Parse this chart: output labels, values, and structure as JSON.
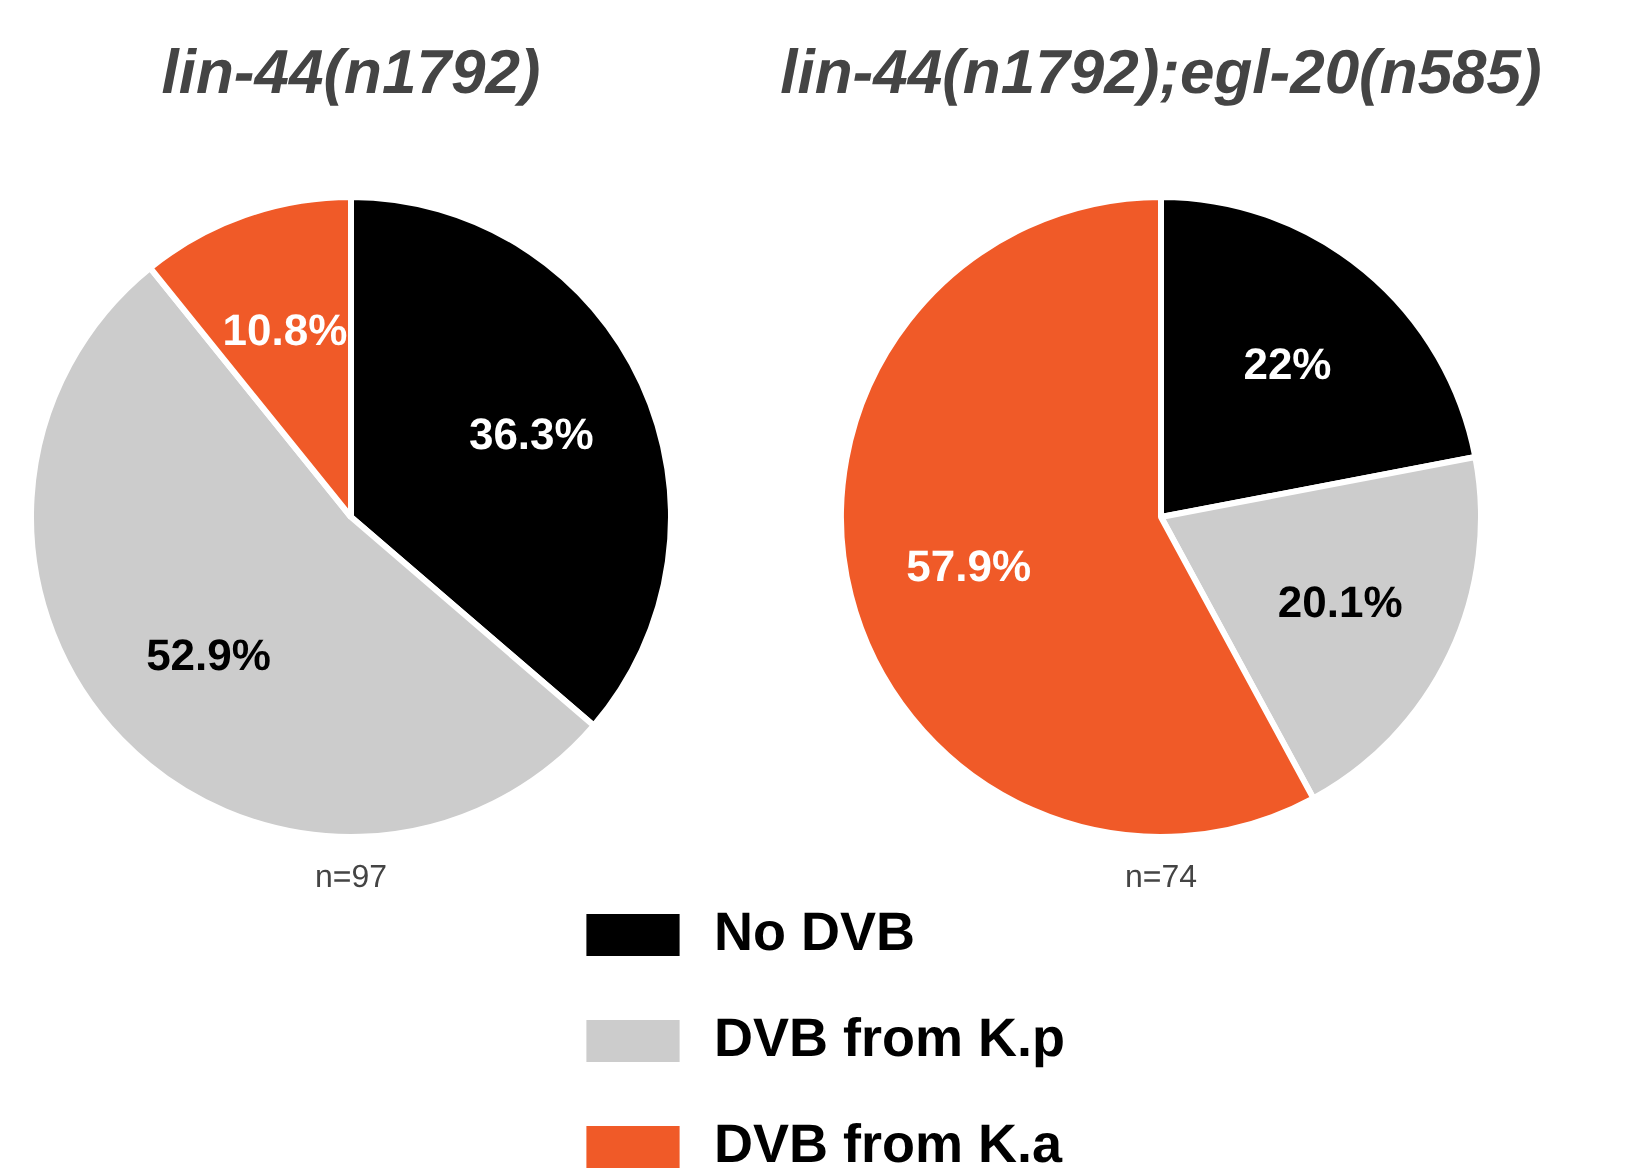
{
  "chart_data": [
    {
      "type": "pie",
      "title": "lin-44(n1792)",
      "categories": [
        "No DVB",
        "DVB from K.p",
        "DVB from K.a"
      ],
      "values": [
        36.3,
        52.9,
        10.8
      ],
      "colors": [
        "#000000",
        "#cccccc",
        "#f05a28"
      ],
      "value_labels": [
        "36.3%",
        "52.9%",
        "10.8%"
      ],
      "annotations": [
        "n=97"
      ],
      "legend": "bottom"
    },
    {
      "type": "pie",
      "title": "lin-44(n1792);egl-20(n585)",
      "categories": [
        null,
        null,
        null
      ],
      "values": [
        22,
        20.1,
        57.9
      ],
      "colors": [
        "#000000",
        "#cccccc",
        "#f05a28"
      ],
      "value_labels": [
        "22%",
        "20.1%",
        "57.9%"
      ],
      "annotations": [
        "n=74"
      ]
    }
  ]
}
